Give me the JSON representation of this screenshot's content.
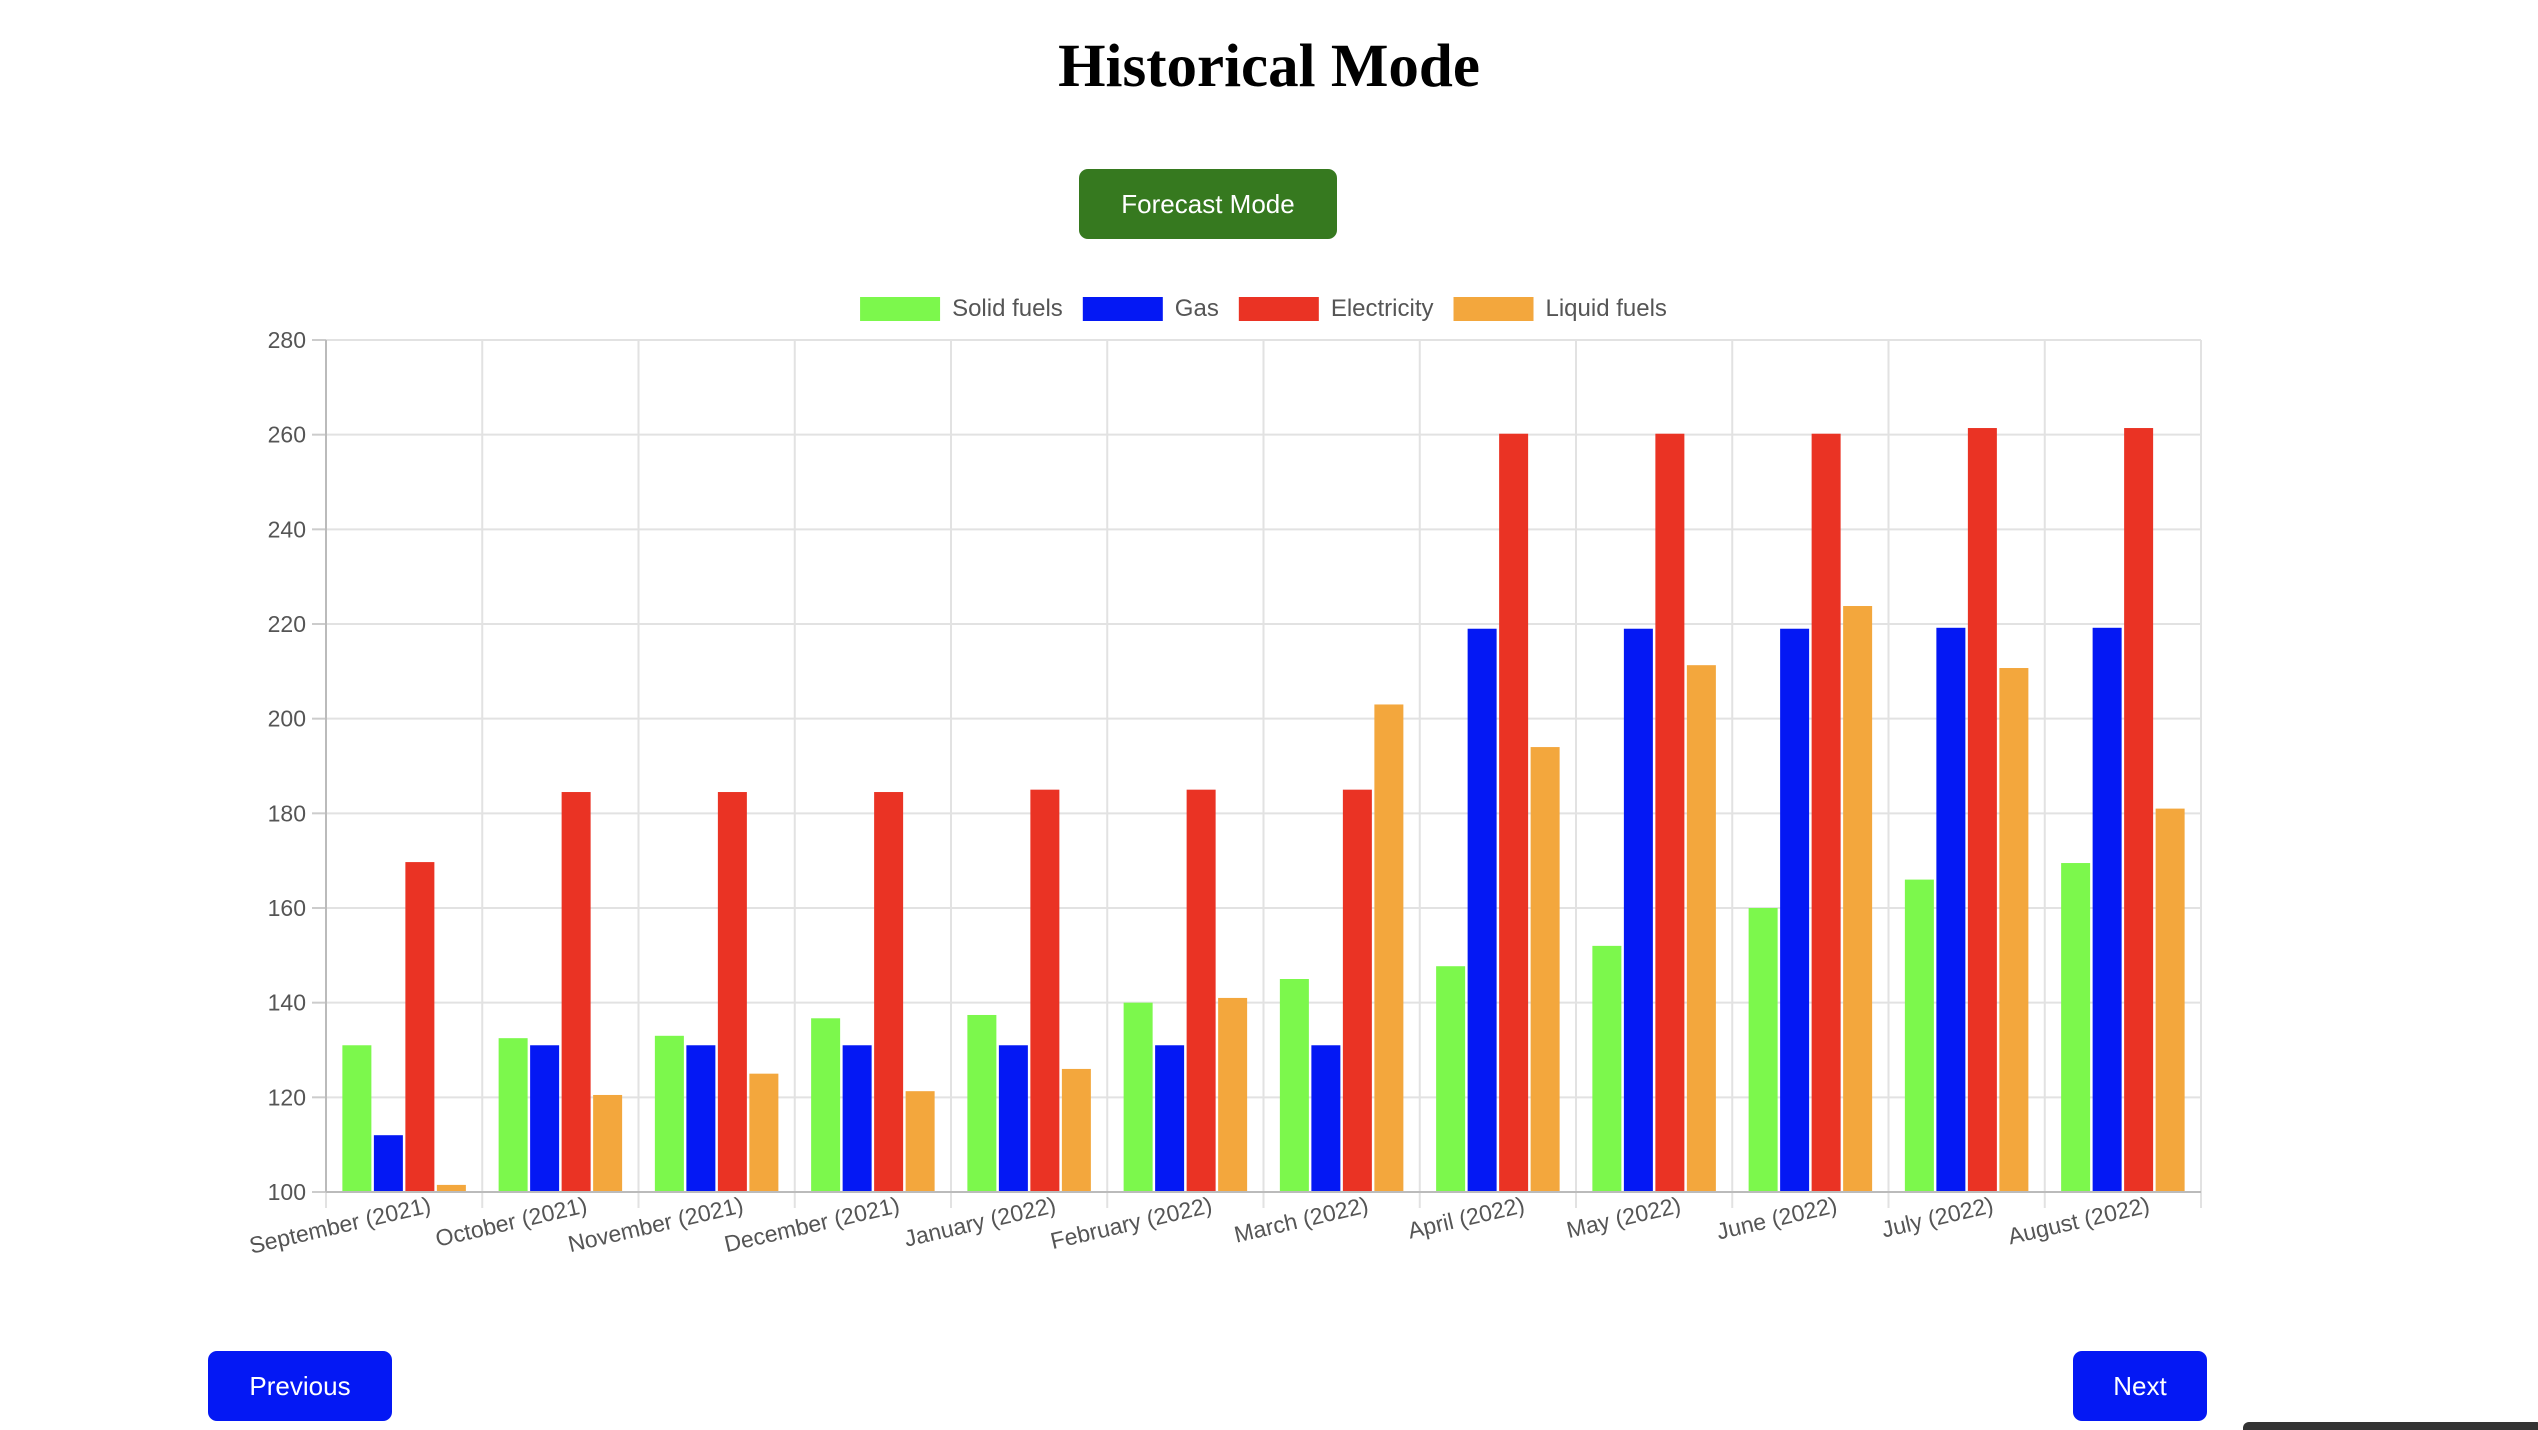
{
  "title": "Historical Mode",
  "buttons": {
    "forecast": "Forecast Mode",
    "previous": "Previous",
    "next": "Next"
  },
  "chart_data": {
    "type": "bar",
    "categories": [
      "September (2021)",
      "October (2021)",
      "November (2021)",
      "December (2021)",
      "January (2022)",
      "February (2022)",
      "March (2022)",
      "April (2022)",
      "May (2022)",
      "June (2022)",
      "July (2022)",
      "August (2022)"
    ],
    "series": [
      {
        "name": "Solid fuels",
        "color": "#7cf84c",
        "values": [
          131,
          132.5,
          133,
          136.7,
          137.4,
          140,
          145,
          147.7,
          152,
          160,
          166,
          169.5
        ]
      },
      {
        "name": "Gas",
        "color": "#0418f4",
        "values": [
          112,
          131,
          131,
          131,
          131,
          131,
          131,
          219,
          219,
          219,
          219.2,
          219.2
        ]
      },
      {
        "name": "Electricity",
        "color": "#ea3324",
        "values": [
          169.7,
          184.5,
          184.5,
          184.5,
          185,
          185,
          185,
          260.2,
          260.2,
          260.2,
          261.4,
          261.4
        ]
      },
      {
        "name": "Liquid fuels",
        "color": "#f3a73d",
        "values": [
          101.5,
          120.5,
          125,
          121.3,
          126,
          141,
          203,
          194,
          211.3,
          223.8,
          210.7,
          181
        ]
      }
    ],
    "y_ticks": [
      "280",
      "260",
      "240",
      "220",
      "200",
      "180",
      "160",
      "140",
      "120",
      "100"
    ],
    "ylim": [
      100,
      280
    ],
    "xlabel": "",
    "ylabel": "",
    "grid": true,
    "legend_position": "top"
  }
}
